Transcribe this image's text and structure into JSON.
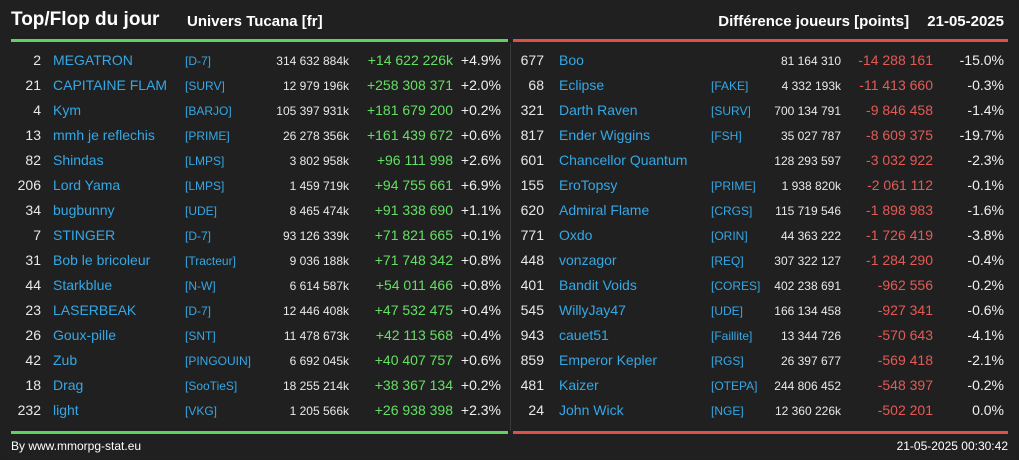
{
  "header": {
    "title": "Top/Flop du jour",
    "universe": "Univers Tucana [fr]",
    "metric": "Différence joueurs [points]",
    "date": "21-05-2025"
  },
  "colors": {
    "up": "#63e063",
    "down": "#e45a55",
    "name": "#34a8e6",
    "top_bar": "#5fd35f",
    "flop_bar": "#e0504a"
  },
  "top": [
    {
      "rank": "2",
      "name": "MEGATRON",
      "alliance": "[D-7]",
      "points": "314 632 884k",
      "diff": "+14 622 226k",
      "pct": "+4.9%"
    },
    {
      "rank": "21",
      "name": "CAPITAINE FLAM",
      "alliance": "[SURV]",
      "points": "12 979 196k",
      "diff": "+258 308 371",
      "pct": "+2.0%"
    },
    {
      "rank": "4",
      "name": "Kym",
      "alliance": "[BARJO]",
      "points": "105 397 931k",
      "diff": "+181 679 200",
      "pct": "+0.2%"
    },
    {
      "rank": "13",
      "name": "mmh je reflechis",
      "alliance": "[PRIME]",
      "points": "26 278 356k",
      "diff": "+161 439 672",
      "pct": "+0.6%"
    },
    {
      "rank": "82",
      "name": "Shindas",
      "alliance": "[LMPS]",
      "points": "3 802 958k",
      "diff": "+96 111 998",
      "pct": "+2.6%"
    },
    {
      "rank": "206",
      "name": "Lord Yama",
      "alliance": "[LMPS]",
      "points": "1 459 719k",
      "diff": "+94 755 661",
      "pct": "+6.9%"
    },
    {
      "rank": "34",
      "name": "bugbunny",
      "alliance": "[UDE]",
      "points": "8 465 474k",
      "diff": "+91 338 690",
      "pct": "+1.1%"
    },
    {
      "rank": "7",
      "name": "STINGER",
      "alliance": "[D-7]",
      "points": "93 126 339k",
      "diff": "+71 821 665",
      "pct": "+0.1%"
    },
    {
      "rank": "31",
      "name": "Bob le bricoleur",
      "alliance": "[Tracteur]",
      "points": "9 036 188k",
      "diff": "+71 748 342",
      "pct": "+0.8%"
    },
    {
      "rank": "44",
      "name": "Starkblue",
      "alliance": "[N-W]",
      "points": "6 614 587k",
      "diff": "+54 011 466",
      "pct": "+0.8%"
    },
    {
      "rank": "23",
      "name": "LASERBEAK",
      "alliance": "[D-7]",
      "points": "12 446 408k",
      "diff": "+47 532 475",
      "pct": "+0.4%"
    },
    {
      "rank": "26",
      "name": "Goux-pille",
      "alliance": "[SNT]",
      "points": "11 478 673k",
      "diff": "+42 113 568",
      "pct": "+0.4%"
    },
    {
      "rank": "42",
      "name": "Zub",
      "alliance": "[PINGOUIN]",
      "points": "6 692 045k",
      "diff": "+40 407 757",
      "pct": "+0.6%"
    },
    {
      "rank": "18",
      "name": "Drag",
      "alliance": "[SooTieS]",
      "points": "18 255 214k",
      "diff": "+38 367 134",
      "pct": "+0.2%"
    },
    {
      "rank": "232",
      "name": "light",
      "alliance": "[VKG]",
      "points": "1 205 566k",
      "diff": "+26 938 398",
      "pct": "+2.3%"
    }
  ],
  "flop": [
    {
      "rank": "677",
      "name": "Boo",
      "alliance": "",
      "points": "81 164 310",
      "diff": "-14 288 161",
      "pct": "-15.0%"
    },
    {
      "rank": "68",
      "name": "Eclipse",
      "alliance": "[FAKE]",
      "points": "4 332 193k",
      "diff": "-11 413 660",
      "pct": "-0.3%"
    },
    {
      "rank": "321",
      "name": "Darth Raven",
      "alliance": "[SURV]",
      "points": "700 134 791",
      "diff": "-9 846 458",
      "pct": "-1.4%"
    },
    {
      "rank": "817",
      "name": "Ender Wiggins",
      "alliance": "[FSH]",
      "points": "35 027 787",
      "diff": "-8 609 375",
      "pct": "-19.7%"
    },
    {
      "rank": "601",
      "name": "Chancellor Quantum",
      "alliance": "",
      "points": "128 293 597",
      "diff": "-3 032 922",
      "pct": "-2.3%"
    },
    {
      "rank": "155",
      "name": "EroTopsy",
      "alliance": "[PRIME]",
      "points": "1 938 820k",
      "diff": "-2 061 112",
      "pct": "-0.1%"
    },
    {
      "rank": "620",
      "name": "Admiral Flame",
      "alliance": "[CRGS]",
      "points": "115 719 546",
      "diff": "-1 898 983",
      "pct": "-1.6%"
    },
    {
      "rank": "771",
      "name": "Oxdo",
      "alliance": "[ORIN]",
      "points": "44 363 222",
      "diff": "-1 726 419",
      "pct": "-3.8%"
    },
    {
      "rank": "448",
      "name": "vonzagor",
      "alliance": "[REQ]",
      "points": "307 322 127",
      "diff": "-1 284 290",
      "pct": "-0.4%"
    },
    {
      "rank": "401",
      "name": "Bandit Voids",
      "alliance": "[CORES]",
      "points": "402 238 691",
      "diff": "-962 556",
      "pct": "-0.2%"
    },
    {
      "rank": "545",
      "name": "WillyJay47",
      "alliance": "[UDE]",
      "points": "166 134 458",
      "diff": "-927 341",
      "pct": "-0.6%"
    },
    {
      "rank": "943",
      "name": "cauet51",
      "alliance": "[Faillite]",
      "points": "13 344 726",
      "diff": "-570 643",
      "pct": "-4.1%"
    },
    {
      "rank": "859",
      "name": "Emperor Kepler",
      "alliance": "[RGS]",
      "points": "26 397 677",
      "diff": "-569 418",
      "pct": "-2.1%"
    },
    {
      "rank": "481",
      "name": "Kaizer",
      "alliance": "[OTEPA]",
      "points": "244 806 452",
      "diff": "-548 397",
      "pct": "-0.2%"
    },
    {
      "rank": "24",
      "name": "John Wick",
      "alliance": "[NGE]",
      "points": "12 360 226k",
      "diff": "-502 201",
      "pct": "0.0%"
    }
  ],
  "footer": {
    "credit": "By www.mmorpg-stat.eu",
    "timestamp": "21-05-2025 00:30:42"
  }
}
